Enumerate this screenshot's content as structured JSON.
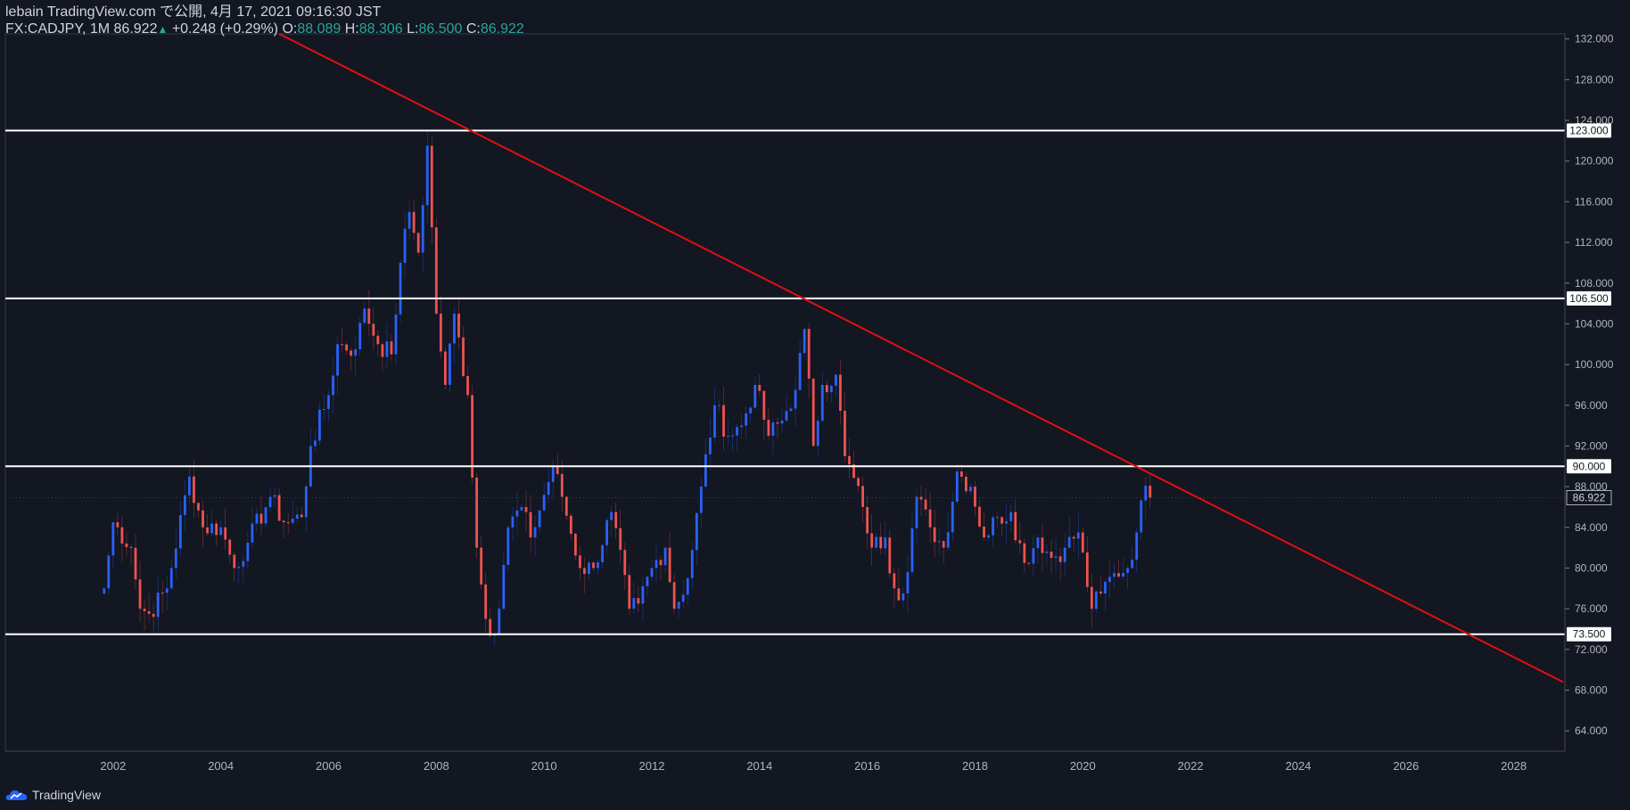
{
  "header": {
    "line1": "lebain TradingView.com で公開, 4月 17, 2021 09:16:30 JST",
    "symbol": "FX:CADJPY, 1M",
    "last": "86.922",
    "change": "+0.248 (+0.29%)",
    "o_label": "O:",
    "o_value": "88.089",
    "h_label": "H:",
    "h_value": "88.306",
    "l_label": "L:",
    "l_value": "86.500",
    "c_label": "C:",
    "c_value": "86.922"
  },
  "footer": {
    "brand": "TradingView"
  },
  "colors": {
    "background": "#131722",
    "up": "#2962ff",
    "down": "#ef5350",
    "trendline": "#e01010",
    "level": "#ffffff",
    "text": "#d1d4dc",
    "teal": "#26a69a"
  },
  "chart_data": {
    "type": "candlestick",
    "symbol": "FX:CADJPY",
    "interval": "1M",
    "x_ticks": [
      "2002",
      "2004",
      "2006",
      "2008",
      "2010",
      "2012",
      "2014",
      "2016",
      "2018",
      "2020",
      "2022",
      "2024",
      "2026",
      "2028"
    ],
    "y_ticks": [
      "64.000",
      "68.000",
      "72.000",
      "76.000",
      "80.000",
      "84.000",
      "88.000",
      "92.000",
      "96.000",
      "100.000",
      "104.000",
      "108.000",
      "112.000",
      "116.000",
      "120.000",
      "124.000",
      "128.000",
      "132.000"
    ],
    "ylim": [
      62.0,
      132.5
    ],
    "xlim": [
      2000.0,
      2028.95
    ],
    "horizontal_levels": [
      {
        "value": 123.0,
        "label": "123.000"
      },
      {
        "value": 106.5,
        "label": "106.500"
      },
      {
        "value": 90.0,
        "label": "90.000"
      },
      {
        "value": 73.5,
        "label": "73.500"
      }
    ],
    "last_price": {
      "value": 86.922,
      "label": "86.922"
    },
    "trendline": {
      "from": {
        "date": "2005-02",
        "price": 132.5
      },
      "to": {
        "date": "2028-12",
        "price": 68.8
      }
    },
    "close_path": [
      [
        "2001-11",
        78.0
      ],
      [
        "2002-01",
        84.5
      ],
      [
        "2002-05",
        82.0
      ],
      [
        "2002-07",
        76.0
      ],
      [
        "2002-09",
        75.5
      ],
      [
        "2003-01",
        78.0
      ],
      [
        "2003-06",
        89.0
      ],
      [
        "2003-09",
        84.0
      ],
      [
        "2004-01",
        84.0
      ],
      [
        "2004-04",
        80.0
      ],
      [
        "2004-07",
        82.5
      ],
      [
        "2004-12",
        87.0
      ],
      [
        "2005-03",
        84.5
      ],
      [
        "2005-07",
        85.0
      ],
      [
        "2005-09",
        92.0
      ],
      [
        "2006-01",
        97.0
      ],
      [
        "2006-03",
        102.0
      ],
      [
        "2006-07",
        101.5
      ],
      [
        "2006-09",
        105.5
      ],
      [
        "2006-12",
        102.0
      ],
      [
        "2007-03",
        101.0
      ],
      [
        "2007-05",
        110.0
      ],
      [
        "2007-07",
        115.0
      ],
      [
        "2007-09",
        111.0
      ],
      [
        "2007-11",
        121.5
      ],
      [
        "2008-01",
        105.0
      ],
      [
        "2008-03",
        98.0
      ],
      [
        "2008-05",
        105.0
      ],
      [
        "2008-08",
        97.0
      ],
      [
        "2008-10",
        82.0
      ],
      [
        "2008-12",
        75.0
      ],
      [
        "2009-02",
        73.5
      ],
      [
        "2009-05",
        84.0
      ],
      [
        "2009-08",
        86.0
      ],
      [
        "2009-10",
        83.0
      ],
      [
        "2010-03",
        90.0
      ],
      [
        "2010-05",
        87.0
      ],
      [
        "2010-09",
        80.0
      ],
      [
        "2010-12",
        80.0
      ],
      [
        "2011-04",
        85.5
      ],
      [
        "2011-08",
        76.0
      ],
      [
        "2011-10",
        76.5
      ],
      [
        "2012-01",
        80.0
      ],
      [
        "2012-04",
        82.0
      ],
      [
        "2012-06",
        76.0
      ],
      [
        "2012-09",
        79.0
      ],
      [
        "2012-12",
        88.0
      ],
      [
        "2013-03",
        96.0
      ],
      [
        "2013-06",
        93.0
      ],
      [
        "2013-09",
        94.0
      ],
      [
        "2013-12",
        98.0
      ],
      [
        "2014-03",
        93.0
      ],
      [
        "2014-06",
        94.5
      ],
      [
        "2014-09",
        97.5
      ],
      [
        "2014-11",
        103.5
      ],
      [
        "2015-01",
        92.0
      ],
      [
        "2015-03",
        98.0
      ],
      [
        "2015-06",
        99.0
      ],
      [
        "2015-08",
        91.0
      ],
      [
        "2015-12",
        86.0
      ],
      [
        "2016-02",
        82.0
      ],
      [
        "2016-05",
        83.0
      ],
      [
        "2016-07",
        78.0
      ],
      [
        "2016-09",
        77.5
      ],
      [
        "2016-12",
        87.0
      ],
      [
        "2017-03",
        84.0
      ],
      [
        "2017-06",
        82.0
      ],
      [
        "2017-09",
        89.5
      ],
      [
        "2017-12",
        88.0
      ],
      [
        "2018-03",
        83.0
      ],
      [
        "2018-06",
        85.0
      ],
      [
        "2018-09",
        85.5
      ],
      [
        "2018-12",
        80.5
      ],
      [
        "2019-03",
        83.0
      ],
      [
        "2019-06",
        81.0
      ],
      [
        "2019-09",
        82.0
      ],
      [
        "2019-12",
        83.5
      ],
      [
        "2020-03",
        76.0
      ],
      [
        "2020-05",
        77.5
      ],
      [
        "2020-08",
        79.5
      ],
      [
        "2020-11",
        80.0
      ],
      [
        "2021-01",
        83.5
      ],
      [
        "2021-03",
        88.1
      ],
      [
        "2021-04",
        86.922
      ]
    ]
  }
}
